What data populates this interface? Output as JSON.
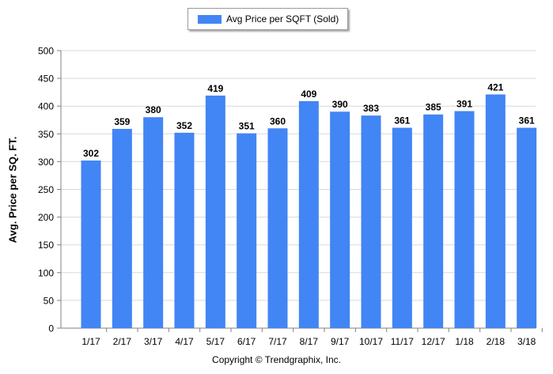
{
  "chart_data": {
    "type": "bar",
    "categories": [
      "1/17",
      "2/17",
      "3/17",
      "4/17",
      "5/17",
      "6/17",
      "7/17",
      "8/17",
      "9/17",
      "10/17",
      "11/17",
      "12/17",
      "1/18",
      "2/18",
      "3/18"
    ],
    "series": [
      {
        "name": "Avg Price per SQFT (Sold)",
        "values": [
          302,
          359,
          380,
          352,
          419,
          351,
          360,
          409,
          390,
          383,
          361,
          385,
          391,
          421,
          361
        ]
      }
    ],
    "ylabel": "Avg. Price per SQ. FT.",
    "xlabel": "",
    "ylim": [
      0,
      500
    ],
    "yticks": [
      0,
      50,
      100,
      150,
      200,
      250,
      300,
      350,
      400,
      450,
      500
    ],
    "grid": true,
    "legend": "top-center",
    "bar_color": "#4285f4"
  },
  "footer": "Copyright © Trendgraphix, Inc."
}
